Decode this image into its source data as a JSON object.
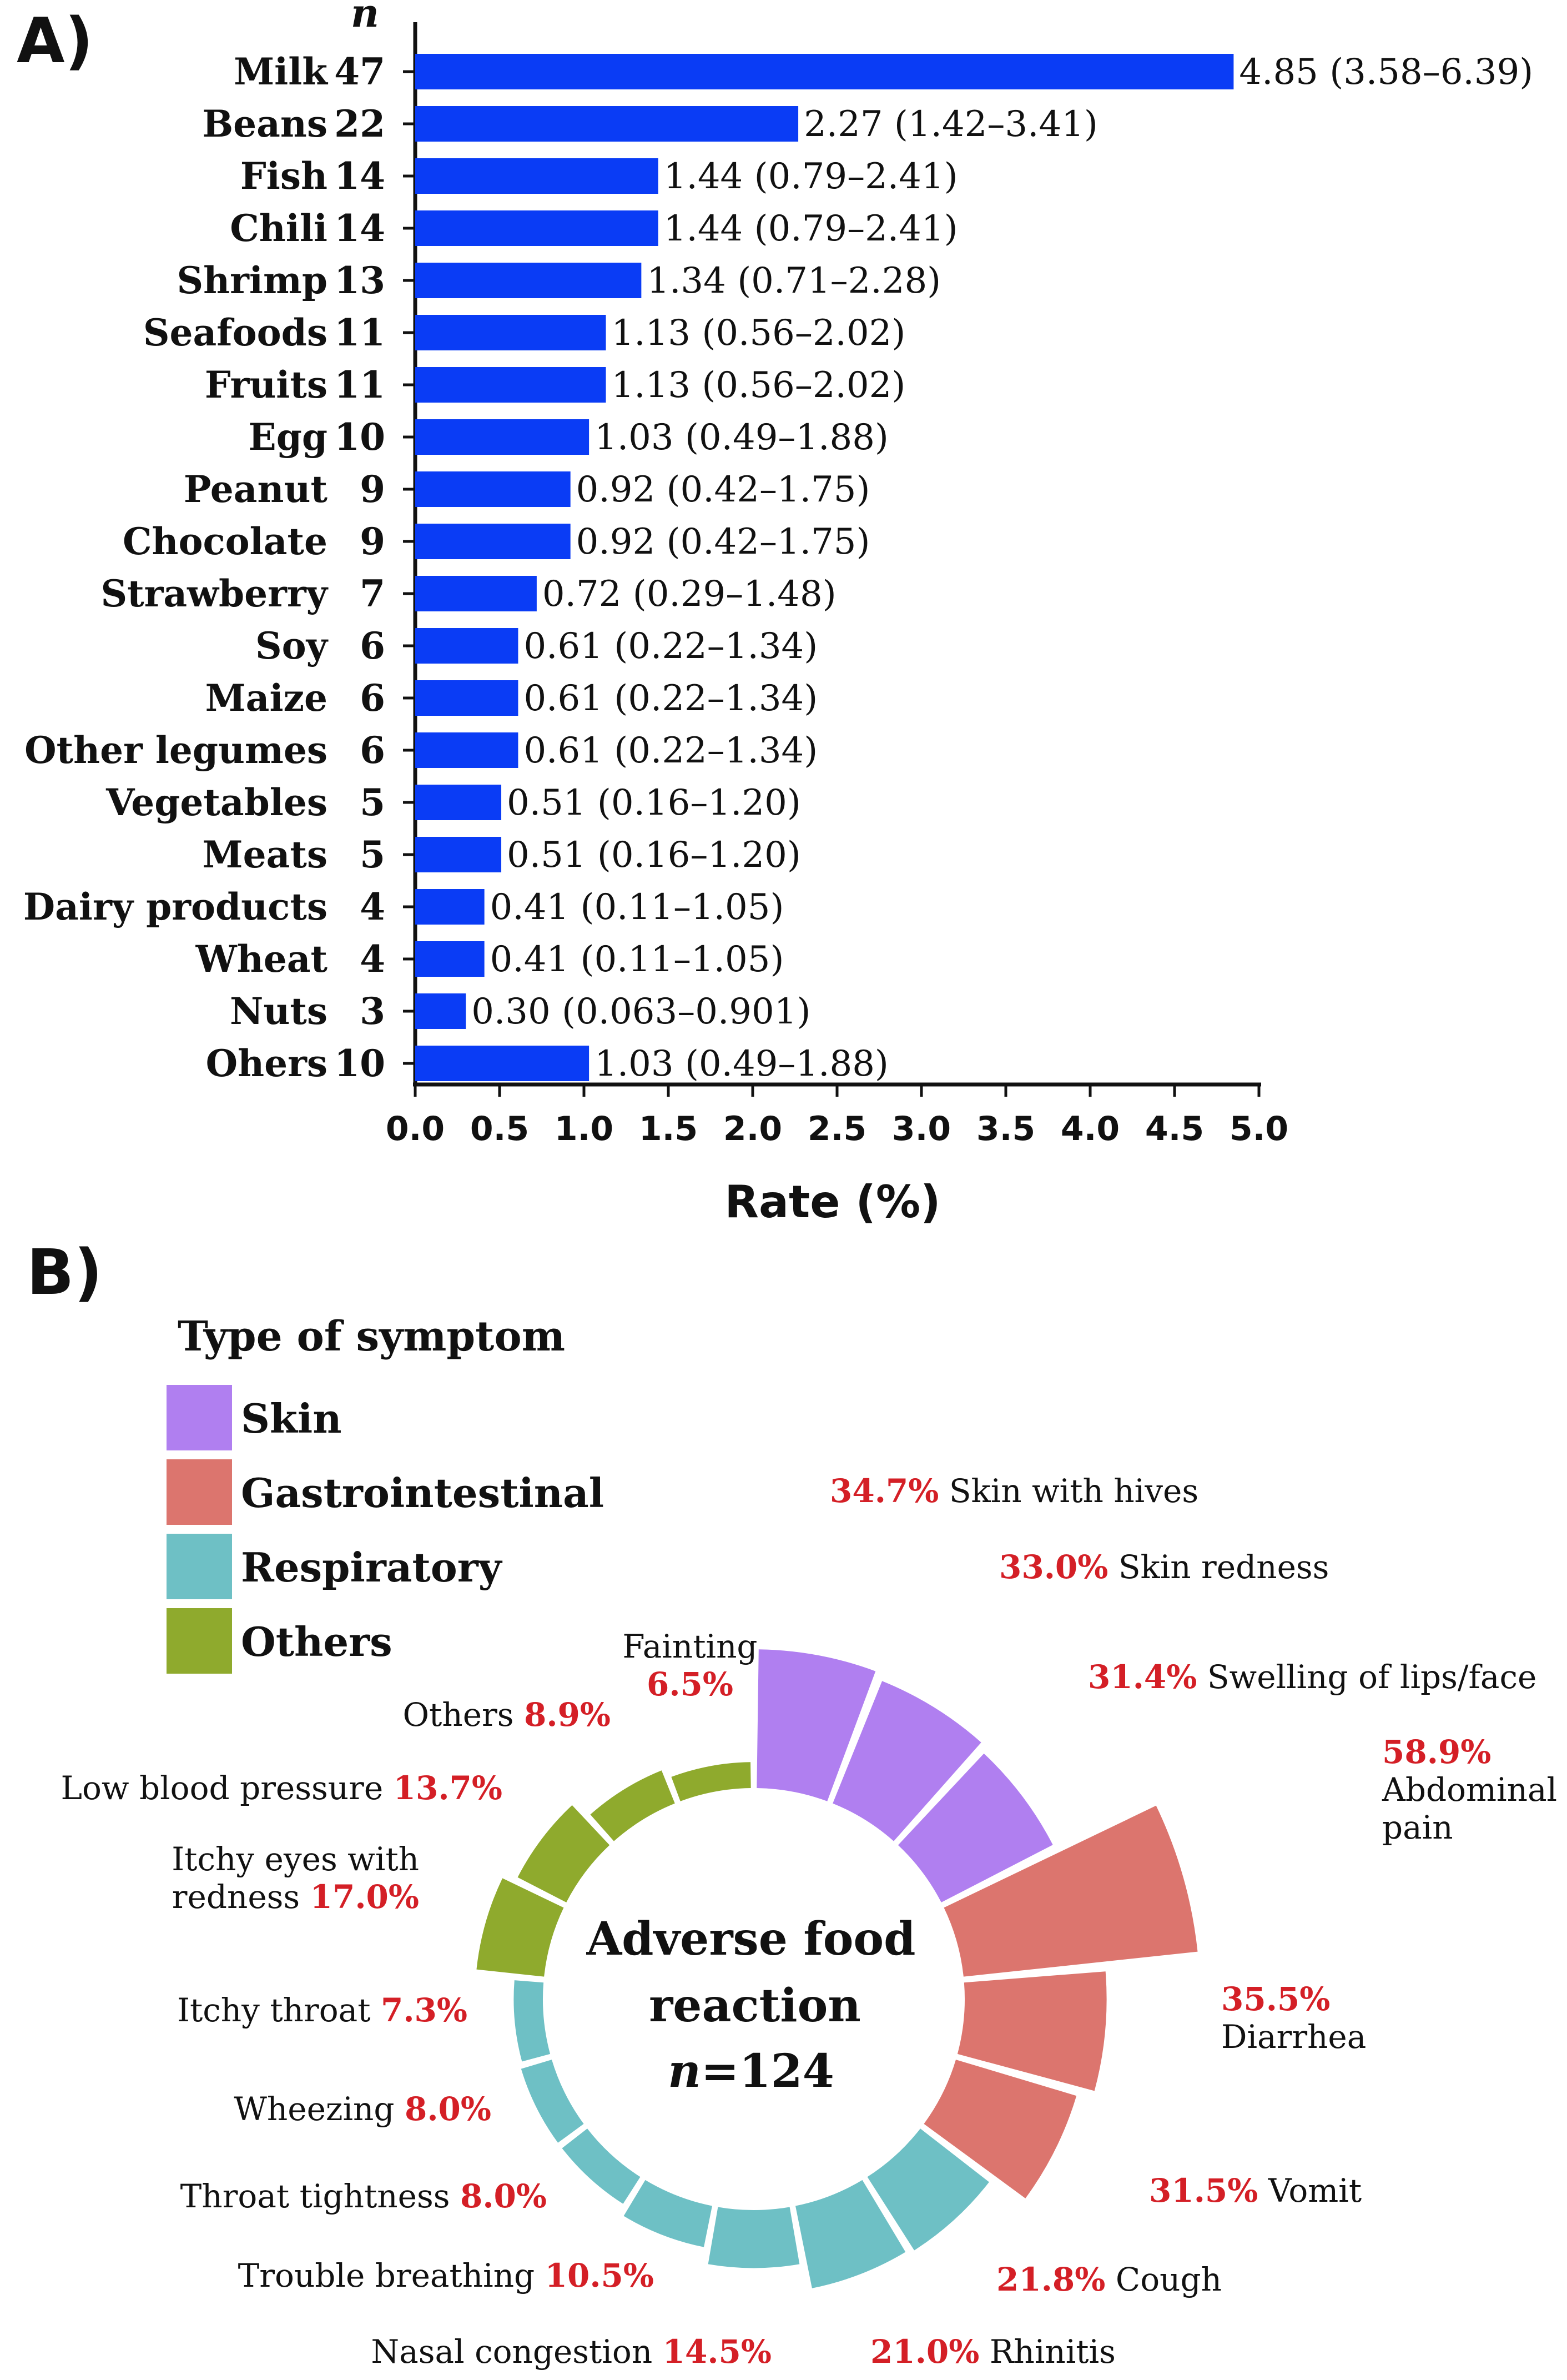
{
  "panel_a": {
    "label": "A)",
    "n_header": "n",
    "chart_data": {
      "type": "bar",
      "orientation": "horizontal",
      "categories": [
        "Milk",
        "Beans",
        "Fish",
        "Chili",
        "Shrimp",
        "Seafoods",
        "Fruits",
        "Egg",
        "Peanut",
        "Chocolate",
        "Strawberry",
        "Soy",
        "Maize",
        "Other legumes",
        "Vegetables",
        "Meats",
        "Dairy products",
        "Wheat",
        "Nuts",
        "Ohers"
      ],
      "n": [
        47,
        22,
        14,
        14,
        13,
        11,
        11,
        10,
        9,
        9,
        7,
        6,
        6,
        6,
        5,
        5,
        4,
        4,
        3,
        10
      ],
      "values": [
        4.85,
        2.27,
        1.44,
        1.44,
        1.34,
        1.13,
        1.13,
        1.03,
        0.92,
        0.92,
        0.72,
        0.61,
        0.61,
        0.61,
        0.51,
        0.51,
        0.41,
        0.41,
        0.3,
        1.03
      ],
      "data_labels": [
        "4.85 (3.58–6.39)",
        "2.27 (1.42–3.41)",
        "1.44 (0.79–2.41)",
        "1.44 (0.79–2.41)",
        "1.34 (0.71–2.28)",
        "1.13 (0.56–2.02)",
        "1.13 (0.56–2.02)",
        "1.03 (0.49–1.88)",
        "0.92 (0.42–1.75)",
        "0.92 (0.42–1.75)",
        "0.72 (0.29–1.48)",
        "0.61 (0.22–1.34)",
        "0.61 (0.22–1.34)",
        "0.61 (0.22–1.34)",
        "0.51 (0.16–1.20)",
        "0.51 (0.16–1.20)",
        "0.41 (0.11–1.05)",
        "0.41 (0.11–1.05)",
        "0.30 (0.063–0.901)",
        "1.03 (0.49–1.88)"
      ],
      "xlabel": "Rate (%)",
      "xlim": [
        0,
        5
      ],
      "xticks": [
        "0.0",
        "0.5",
        "1.0",
        "1.5",
        "2.0",
        "2.5",
        "3.0",
        "3.5",
        "4.0",
        "4.5",
        "5.0"
      ],
      "bar_color": "#0a3cf5"
    }
  },
  "panel_b": {
    "label": "B)",
    "legend_title": "Type of symptom",
    "center_line1": "Adverse food",
    "center_line2": "reaction",
    "center_n": "n=124",
    "chart_data": {
      "type": "radial-bar",
      "groups": [
        {
          "name": "Skin",
          "color": "#b07ff0"
        },
        {
          "name": "Gastrointestinal",
          "color": "#dc756e"
        },
        {
          "name": "Respiratory",
          "color": "#6ec0c5"
        },
        {
          "name": "Others",
          "color": "#8faa2d"
        }
      ],
      "items": [
        {
          "name": "Skin with hives",
          "value": 34.7,
          "pct": "34.7%",
          "group": "Skin"
        },
        {
          "name": "Skin redness",
          "value": 33.0,
          "pct": "33.0%",
          "group": "Skin"
        },
        {
          "name": "Swelling of lips/face",
          "value": 31.4,
          "pct": "31.4%",
          "group": "Skin"
        },
        {
          "name": "Abdominal pain",
          "value": 58.9,
          "pct": "58.9%",
          "group": "Gastrointestinal"
        },
        {
          "name": "Diarrhea",
          "value": 35.5,
          "pct": "35.5%",
          "group": "Gastrointestinal"
        },
        {
          "name": "Vomit",
          "value": 31.5,
          "pct": "31.5%",
          "group": "Gastrointestinal"
        },
        {
          "name": "Cough",
          "value": 21.8,
          "pct": "21.8%",
          "group": "Respiratory"
        },
        {
          "name": "Rhinitis",
          "value": 21.0,
          "pct": "21.0%",
          "group": "Respiratory"
        },
        {
          "name": "Nasal congestion",
          "value": 14.5,
          "pct": "14.5%",
          "group": "Respiratory"
        },
        {
          "name": "Trouble breathing",
          "value": 10.5,
          "pct": "10.5%",
          "group": "Respiratory"
        },
        {
          "name": "Throat tightness",
          "value": 8.0,
          "pct": "8.0%",
          "group": "Respiratory"
        },
        {
          "name": "Wheezing",
          "value": 8.0,
          "pct": "8.0%",
          "group": "Respiratory"
        },
        {
          "name": "Itchy throat",
          "value": 7.3,
          "pct": "7.3%",
          "group": "Respiratory"
        },
        {
          "name": "Itchy eyes with redness",
          "value": 17.0,
          "pct": "17.0%",
          "group": "Others"
        },
        {
          "name": "Low blood pressure",
          "value": 13.7,
          "pct": "13.7%",
          "group": "Others"
        },
        {
          "name": "Others",
          "value": 8.9,
          "pct": "8.9%",
          "group": "Others"
        },
        {
          "name": "Fainting",
          "value": 6.5,
          "pct": "6.5%",
          "group": "Others"
        }
      ]
    }
  }
}
